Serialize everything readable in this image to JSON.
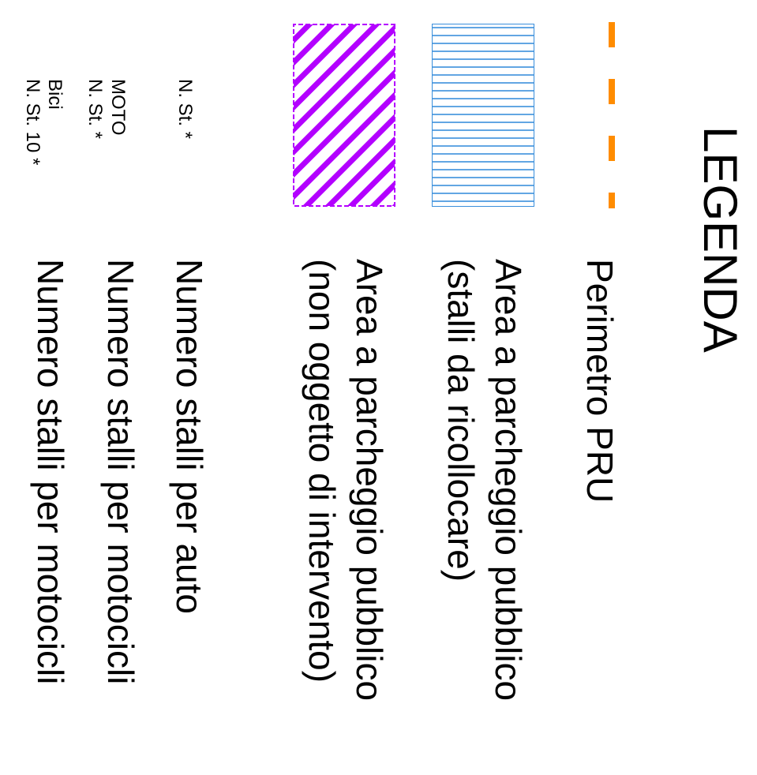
{
  "legend": {
    "title": "LEGENDA",
    "items": [
      {
        "id": "perimeter",
        "lines": [
          "Perimetro PRU"
        ],
        "color": "#ff8c00"
      },
      {
        "id": "parking-relocate",
        "lines": [
          "Area a parcheggio pubblico",
          "(stalli da ricollocare)"
        ],
        "color": "#3a8fdc"
      },
      {
        "id": "parking-public",
        "lines": [
          "Area a parcheggio pubblico",
          "(non oggetto di intervento)"
        ],
        "color": "#b300ff"
      },
      {
        "id": "car-stalls",
        "symbol_text": [
          "N. St. *"
        ],
        "label": "Numero stalli per auto"
      },
      {
        "id": "moto-stalls",
        "symbol_text": [
          "MOTO",
          "N. St. *"
        ],
        "label": "Numero stalli per motocicli"
      },
      {
        "id": "bike-stalls",
        "symbol_text": [
          "Bici",
          "N. St. 10 *"
        ],
        "label": "Numero stalli per motocicli"
      }
    ]
  }
}
